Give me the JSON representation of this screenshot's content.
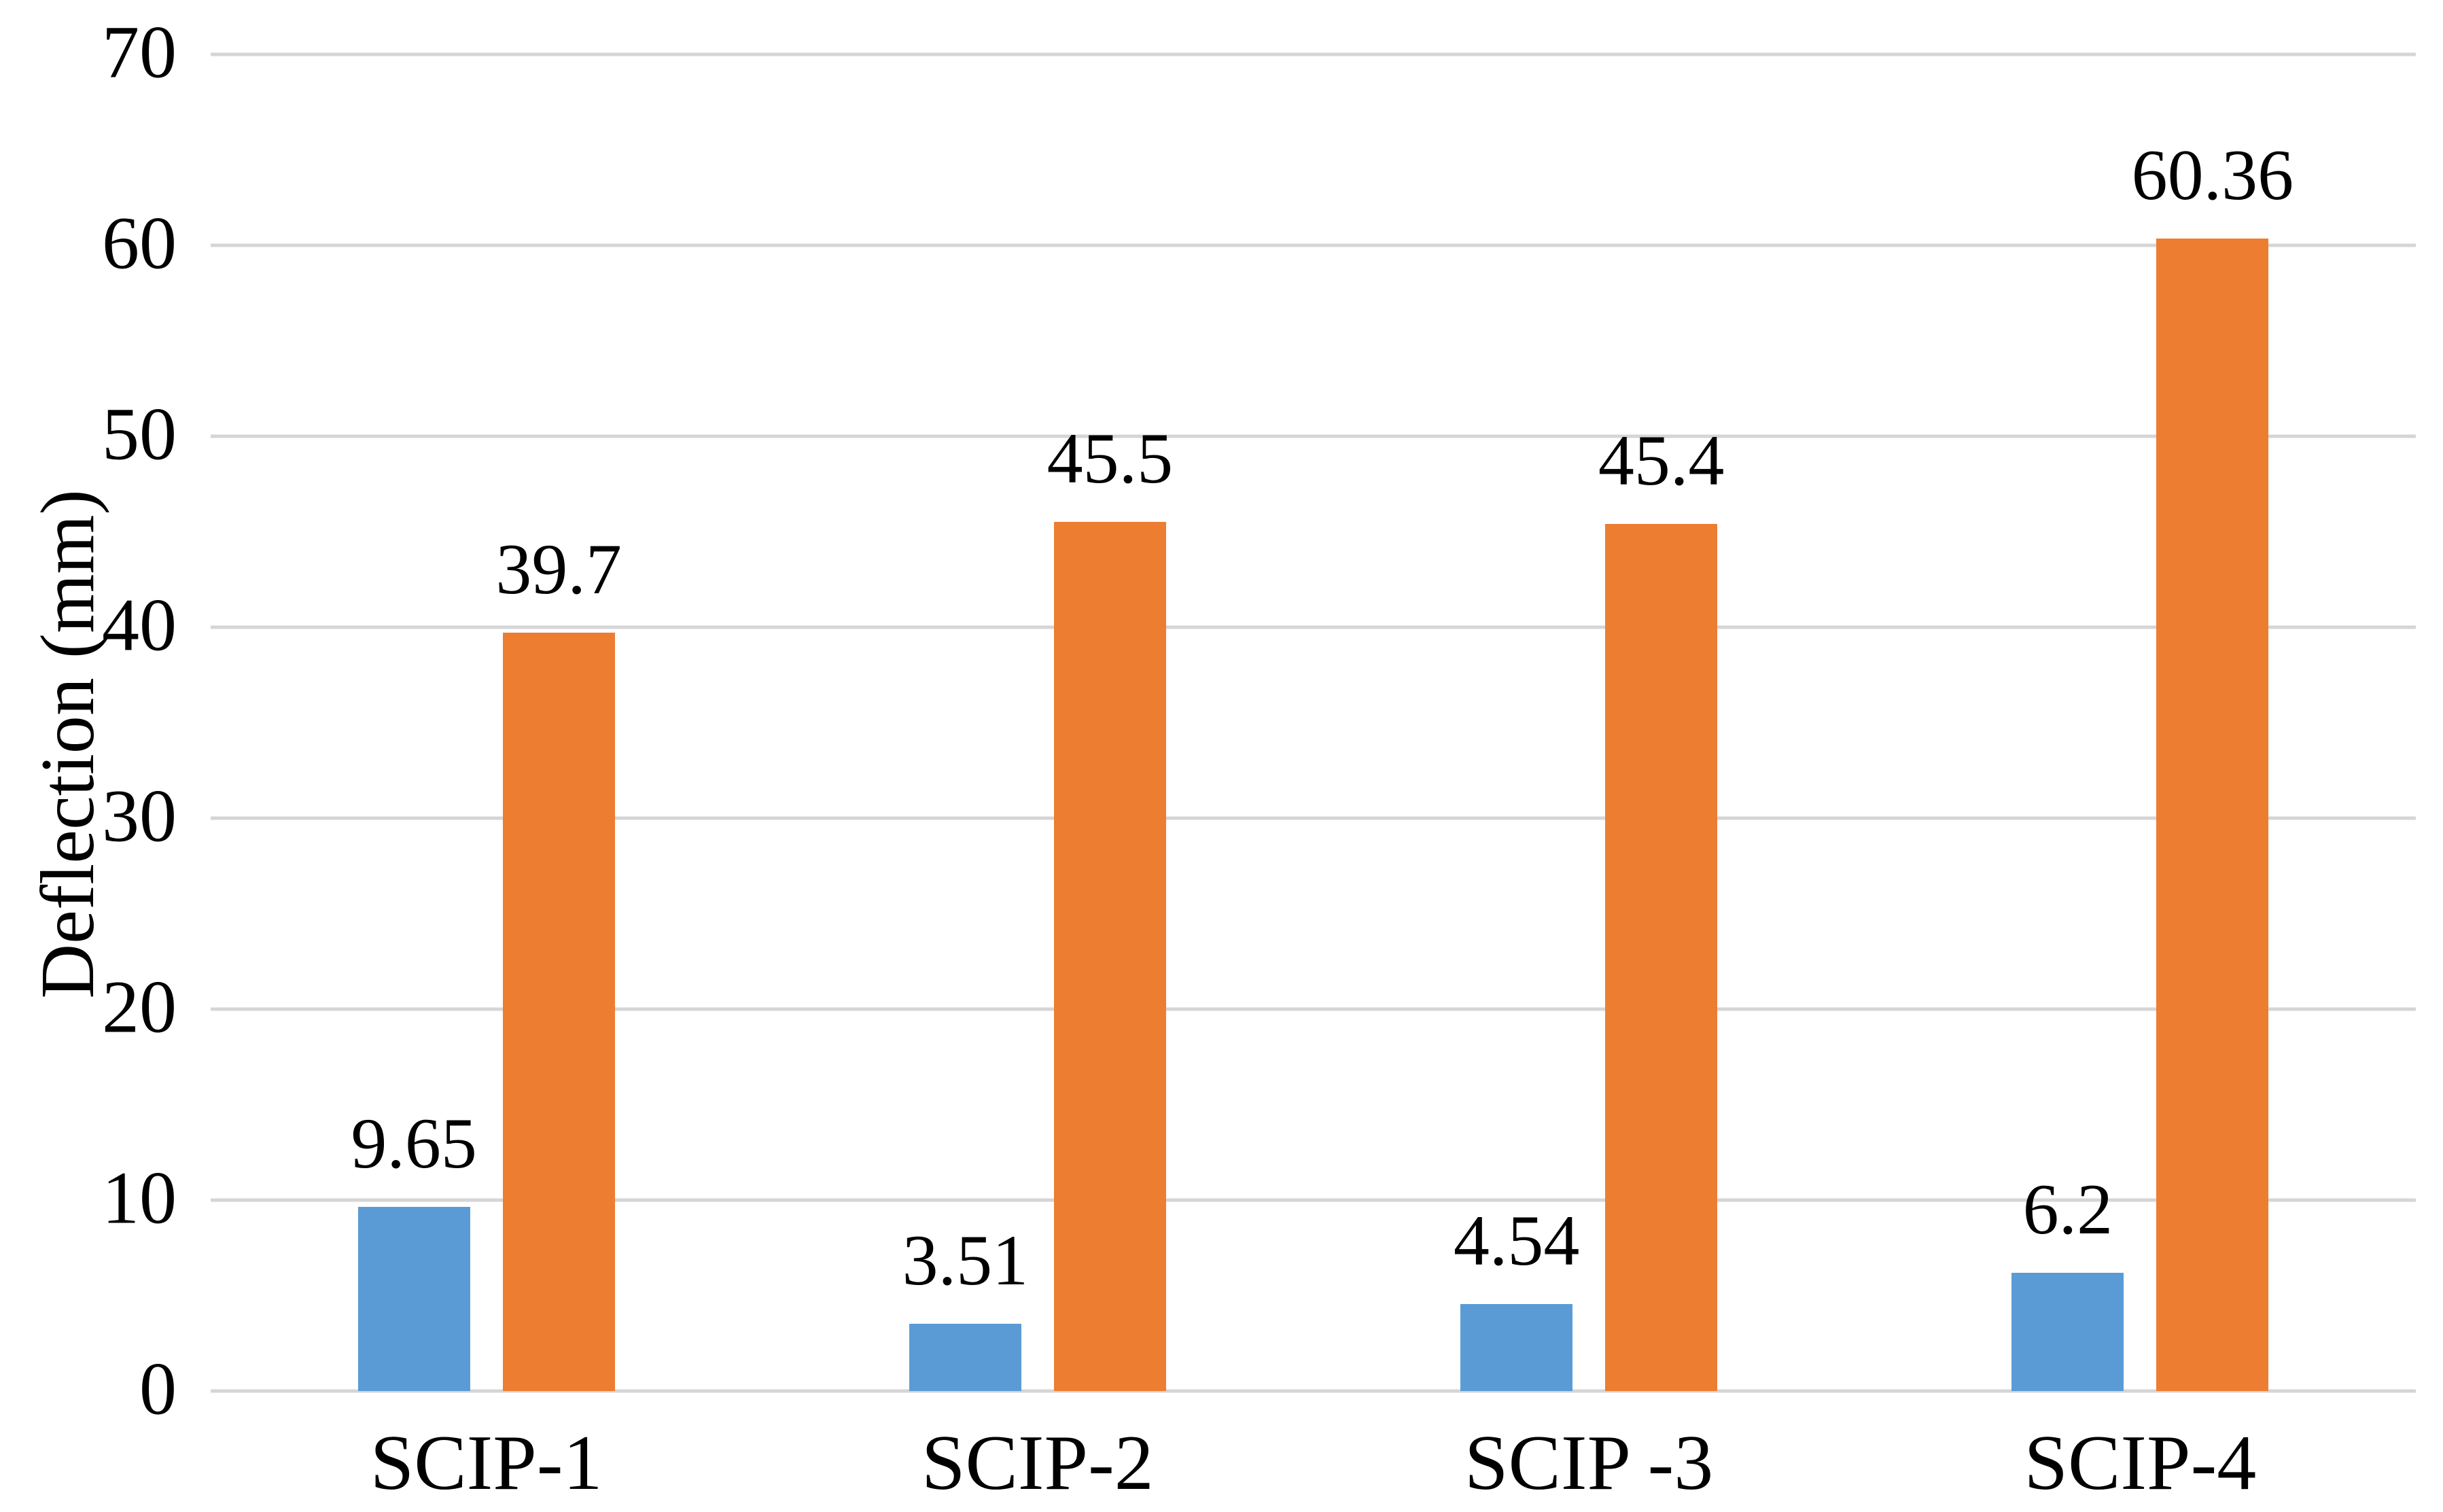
{
  "chart_data": {
    "type": "bar",
    "title": "",
    "ylabel": "Deflection (mm)",
    "ylim": [
      0,
      70
    ],
    "yticks": [
      0,
      10,
      20,
      30,
      40,
      50,
      60,
      70
    ],
    "grid": true,
    "legend_position": "none",
    "categories": [
      "SCIP-1",
      "SCIP-2",
      "SCIP -3",
      "SCIP-4"
    ],
    "series": [
      {
        "name": "blue",
        "color": "#5B9BD5",
        "values": [
          9.65,
          3.51,
          4.54,
          6.2
        ]
      },
      {
        "name": "orange",
        "color": "#ED7D31",
        "values": [
          39.7,
          45.5,
          45.4,
          60.36
        ]
      }
    ],
    "data_labels": {
      "blue": [
        "9.65",
        "3.51",
        "4.54",
        "6.2"
      ],
      "orange": [
        "39.7",
        "45.5",
        "45.4",
        "60.36"
      ]
    }
  },
  "colors": {
    "blue_bar": "#5B9BD5",
    "orange_bar": "#ED7D31",
    "gridline": "#D5D5D5",
    "text": "#000000",
    "background": "#FFFFFF"
  }
}
